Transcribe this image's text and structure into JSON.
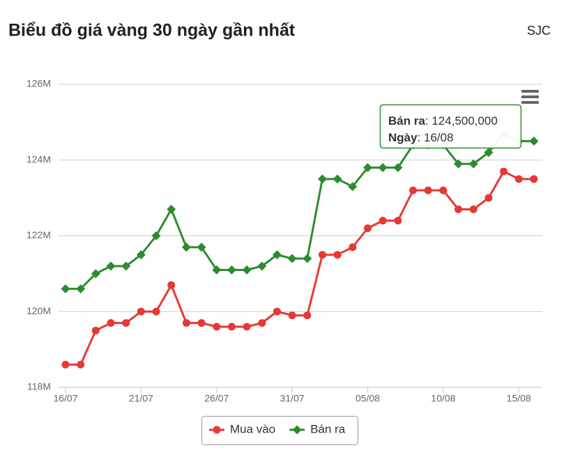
{
  "chart_data": {
    "type": "line",
    "title": "Biểu đồ giá vàng 30 ngày gần nhất",
    "source": "SJC",
    "categories": [
      "16/07",
      null,
      null,
      null,
      null,
      "21/07",
      null,
      null,
      null,
      null,
      "26/07",
      null,
      null,
      null,
      null,
      "31/07",
      null,
      null,
      null,
      null,
      "05/08",
      null,
      null,
      null,
      null,
      "10/08",
      null,
      null,
      null,
      null,
      "15/08",
      null
    ],
    "series": [
      {
        "name": "Mua vào",
        "color": "#e53935",
        "marker": "circle",
        "values": [
          118600000,
          118600000,
          119500000,
          119700000,
          119700000,
          120000000,
          120000000,
          120700000,
          119700000,
          119700000,
          119600000,
          119600000,
          119600000,
          119700000,
          120000000,
          119900000,
          119900000,
          121500000,
          121500000,
          121700000,
          122200000,
          122400000,
          122400000,
          123200000,
          123200000,
          123200000,
          122700000,
          122700000,
          123000000,
          123700000,
          123500000,
          123500000
        ]
      },
      {
        "name": "Bán ra",
        "color": "#2e8b2e",
        "marker": "diamond",
        "values": [
          120600000,
          120600000,
          121000000,
          121200000,
          121200000,
          121500000,
          122000000,
          122700000,
          121700000,
          121700000,
          121100000,
          121100000,
          121100000,
          121200000,
          121500000,
          121400000,
          121400000,
          123500000,
          123500000,
          123300000,
          123800000,
          123800000,
          123800000,
          124400000,
          124400000,
          124400000,
          123900000,
          123900000,
          124200000,
          124700000,
          124500000,
          124500000
        ]
      }
    ],
    "ylim": [
      118000000,
      126000000
    ],
    "yticks": [
      {
        "value": 118000000,
        "label": "118M"
      },
      {
        "value": 120000000,
        "label": "120M"
      },
      {
        "value": 122000000,
        "label": "122M"
      },
      {
        "value": 124000000,
        "label": "124M"
      },
      {
        "value": 126000000,
        "label": "126M"
      }
    ],
    "grid": true,
    "legend": "bottom",
    "tooltip": {
      "rows": [
        {
          "label": "Bán ra",
          "text": ": 124,500,000"
        },
        {
          "label": "Ngày",
          "text": ": 16/08"
        }
      ]
    }
  }
}
